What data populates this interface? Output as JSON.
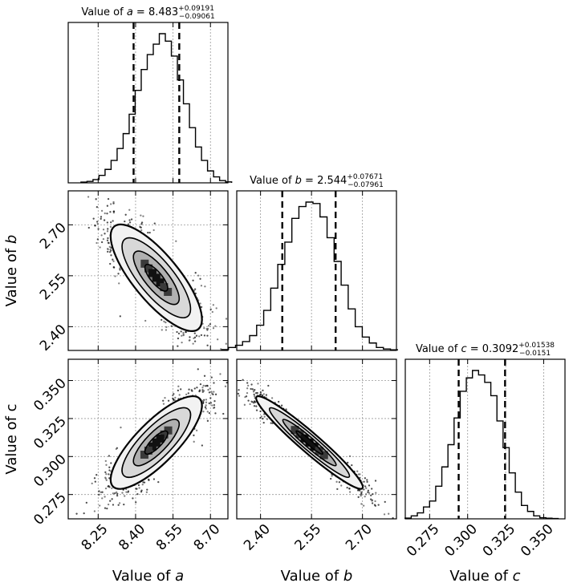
{
  "chart_data": {
    "type": "corner",
    "parameters": [
      {
        "key": "a",
        "title_prefix": "Value of ",
        "symbol": "a",
        "title_value": "8.483",
        "title_err_plus": "+0.09191",
        "title_err_minus": "−0.09061",
        "median": 8.483,
        "quantile_lines": [
          8.392,
          8.575
        ],
        "axis_label": "Value of a",
        "range": [
          8.13,
          8.77
        ],
        "ticks": [
          8.25,
          8.4,
          8.55,
          8.7
        ],
        "tick_labels": [
          "8.25",
          "8.40",
          "8.55",
          "8.70"
        ],
        "hist_bins": [
          0.005,
          0.01,
          0.022,
          0.05,
          0.09,
          0.15,
          0.23,
          0.33,
          0.46,
          0.62,
          0.76,
          0.86,
          0.93,
          1.0,
          0.95,
          0.85,
          0.69,
          0.53,
          0.37,
          0.24,
          0.15,
          0.08,
          0.04,
          0.015,
          0.006
        ]
      },
      {
        "key": "b",
        "title_prefix": "Value of ",
        "symbol": "b",
        "title_value": "2.544",
        "title_err_plus": "+0.07671",
        "title_err_minus": "−0.07961",
        "median": 2.544,
        "quantile_lines": [
          2.464,
          2.621
        ],
        "axis_label": "Value of b",
        "range": [
          2.33,
          2.8
        ],
        "ticks": [
          2.4,
          2.55,
          2.7
        ],
        "tick_labels": [
          "2.40",
          "2.55",
          "2.70"
        ],
        "hist_bins": [
          0.006,
          0.02,
          0.035,
          0.06,
          0.1,
          0.17,
          0.27,
          0.42,
          0.58,
          0.73,
          0.89,
          0.97,
          1.0,
          0.99,
          0.9,
          0.76,
          0.6,
          0.44,
          0.28,
          0.16,
          0.09,
          0.05,
          0.02,
          0.01,
          0.004
        ]
      },
      {
        "key": "c",
        "title_prefix": "Value of ",
        "symbol": "c",
        "title_value": "0.3092",
        "title_err_plus": "+0.01538",
        "title_err_minus": "−0.0151",
        "median": 0.3092,
        "quantile_lines": [
          0.2941,
          0.3246
        ],
        "axis_label": "Value of c",
        "range": [
          0.259,
          0.364
        ],
        "ticks": [
          0.275,
          0.3,
          0.325,
          0.35
        ],
        "tick_labels": [
          "0.275",
          "0.300",
          "0.325",
          "0.350"
        ],
        "hist_bins": [
          0.005,
          0.02,
          0.04,
          0.08,
          0.12,
          0.22,
          0.35,
          0.5,
          0.68,
          0.86,
          0.95,
          1.0,
          0.97,
          0.92,
          0.83,
          0.66,
          0.48,
          0.31,
          0.18,
          0.09,
          0.05,
          0.02,
          0.008,
          0.004,
          0.002
        ]
      }
    ],
    "pairs": [
      {
        "x": "a",
        "y": "b",
        "correlation": -0.78
      },
      {
        "x": "a",
        "y": "c",
        "correlation": 0.8
      },
      {
        "x": "b",
        "y": "c",
        "correlation": -0.96
      }
    ],
    "contour_levels": [
      0.5,
      1.0,
      1.5,
      2.0
    ],
    "grid": true
  }
}
